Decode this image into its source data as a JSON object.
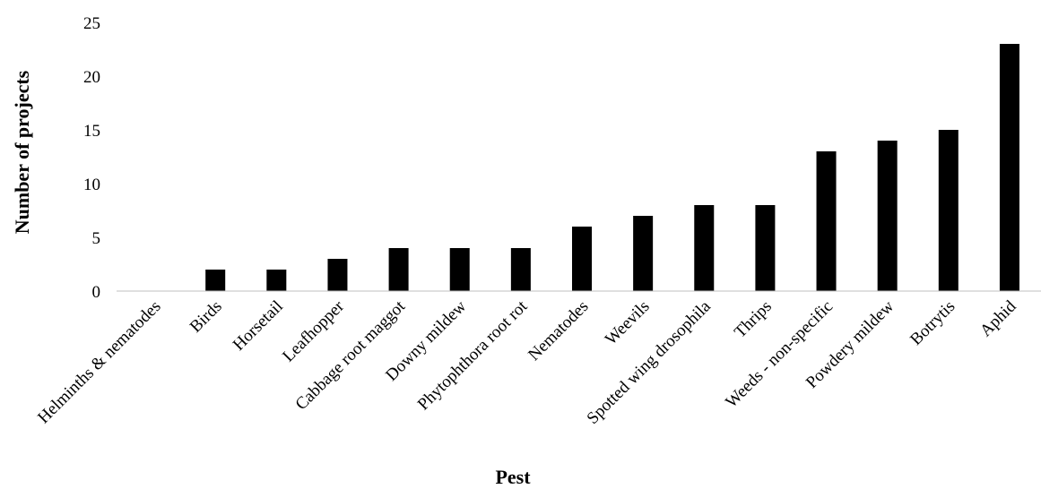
{
  "chart_data": {
    "type": "bar",
    "title": "",
    "xlabel": "Pest",
    "ylabel": "Number of projects",
    "ylim": [
      0,
      25
    ],
    "yticks": [
      0,
      5,
      10,
      15,
      20,
      25
    ],
    "grid": false,
    "legend": "none",
    "bar_color": "#000000",
    "categories": [
      "Helminths & nematodes",
      "Birds",
      "Horsetail",
      "Leafhopper",
      "Cabbage root maggot",
      "Downy mildew",
      "Phytophthora root rot",
      "Nematodes",
      "Weevils",
      "Spotted wing drosophila",
      "Thrips",
      "Weeds - non-specific",
      "Powdery mildew",
      "Botrytis",
      "Aphid"
    ],
    "values": [
      0,
      2,
      2,
      3,
      4,
      4,
      4,
      6,
      7,
      8,
      8,
      13,
      14,
      15,
      23
    ]
  }
}
